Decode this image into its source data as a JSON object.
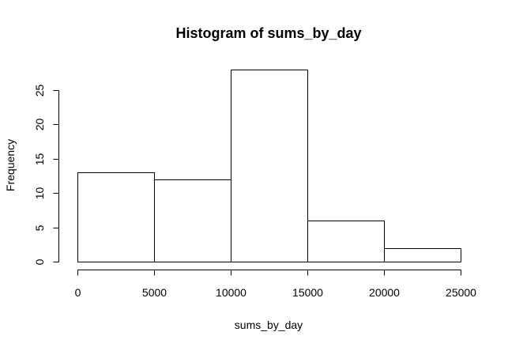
{
  "chart_data": {
    "type": "histogram",
    "title": "Histogram of sums_by_day",
    "xlabel": "sums_by_day",
    "ylabel": "Frequency",
    "bins": [
      {
        "start": 0,
        "end": 5000,
        "count": 13
      },
      {
        "start": 5000,
        "end": 10000,
        "count": 12
      },
      {
        "start": 10000,
        "end": 15000,
        "count": 28
      },
      {
        "start": 15000,
        "end": 20000,
        "count": 6
      },
      {
        "start": 20000,
        "end": 25000,
        "count": 2
      }
    ],
    "xlim": [
      0,
      25000
    ],
    "ylim": [
      0,
      28
    ],
    "xticks": [
      0,
      5000,
      10000,
      15000,
      20000,
      25000
    ],
    "xtick_labels": [
      "0",
      "5000",
      "10000",
      "15000",
      "20000",
      "25000"
    ],
    "yticks": [
      0,
      5,
      10,
      15,
      20,
      25
    ],
    "ytick_labels": [
      "0",
      "5",
      "10",
      "15",
      "20",
      "25"
    ],
    "bar_fill": "#ffffff",
    "bar_stroke": "#000000",
    "grid": false,
    "legend": false
  }
}
